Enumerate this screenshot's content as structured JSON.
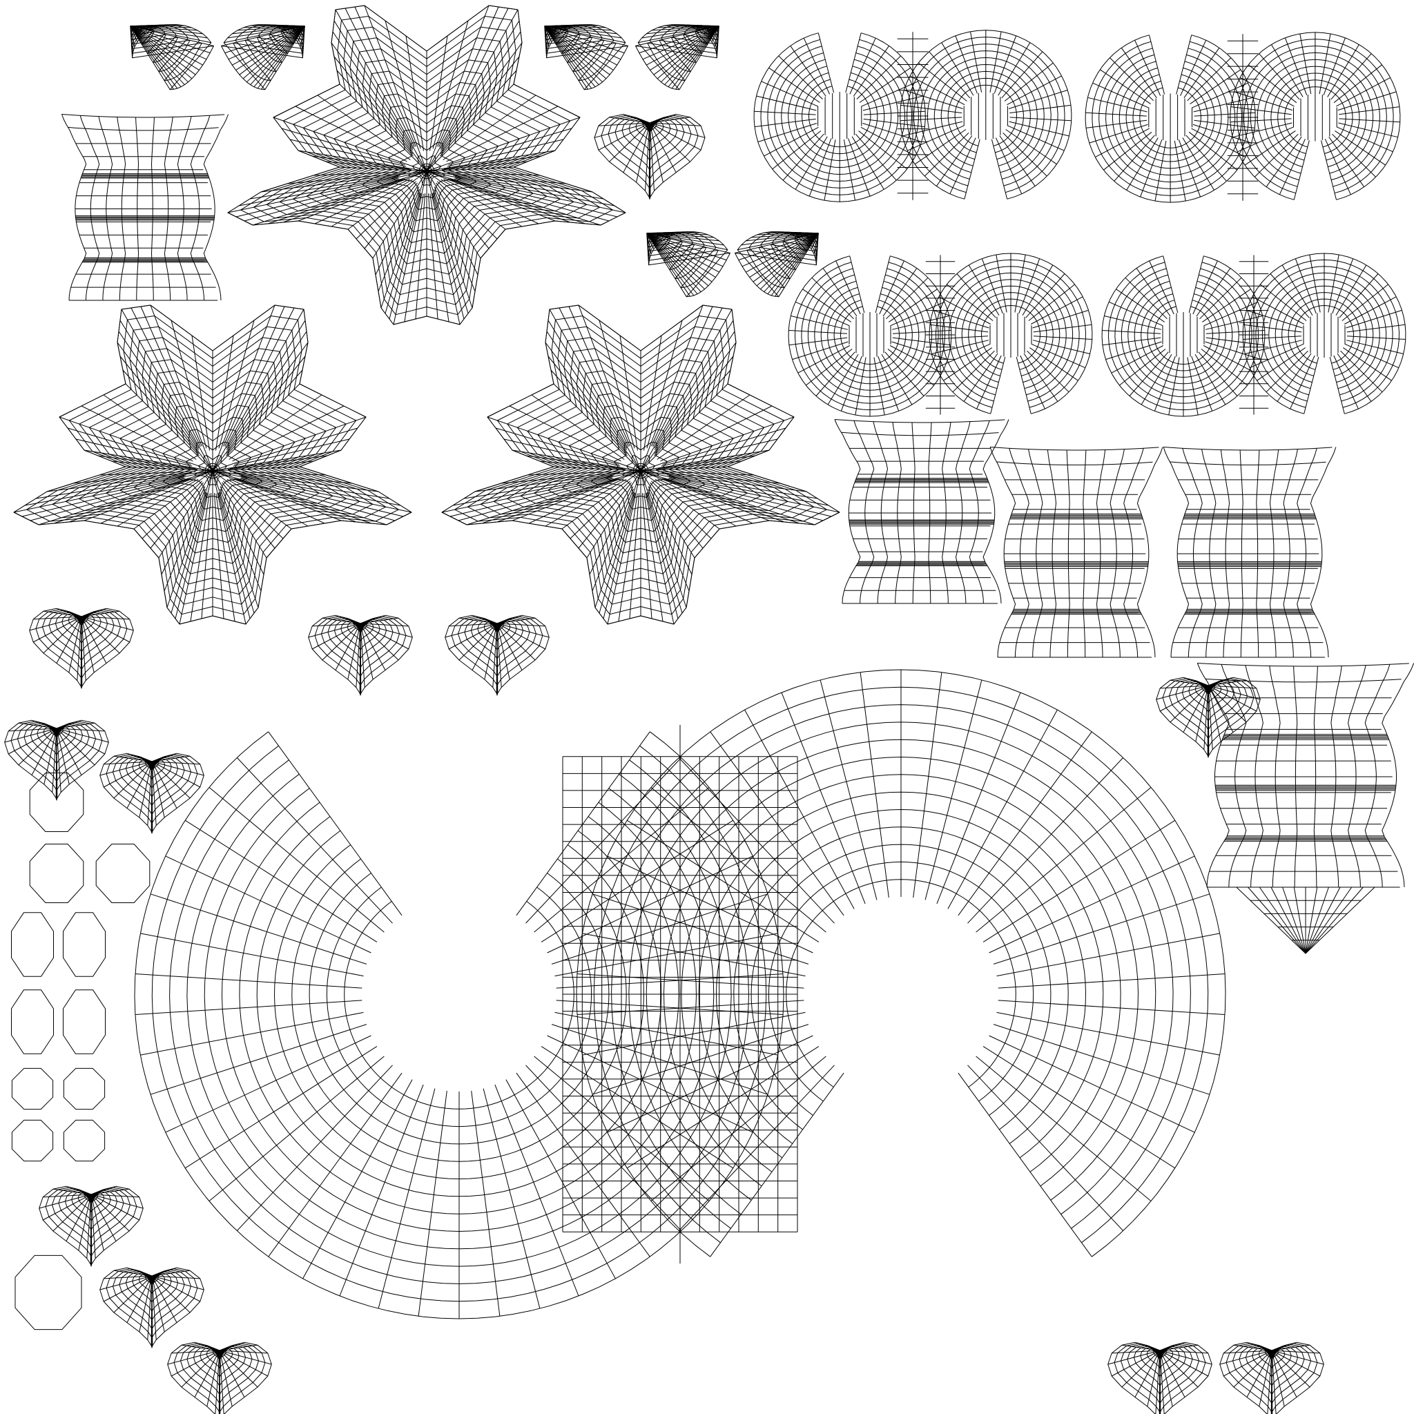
{
  "canvas": {
    "background_color": "#ffffff",
    "line_color": "#000000"
  },
  "islands": [
    {
      "kind": "twin-lobe",
      "label": ""
    },
    {
      "kind": "twin-lobe",
      "label": ""
    },
    {
      "kind": "twin-lobe",
      "label": ""
    },
    {
      "kind": "twin-lobe",
      "label": ""
    },
    {
      "kind": "twin-lobe-large",
      "label": ""
    },
    {
      "kind": "star",
      "label": ""
    },
    {
      "kind": "star",
      "label": ""
    },
    {
      "kind": "star",
      "label": ""
    },
    {
      "kind": "waist",
      "label": ""
    },
    {
      "kind": "waist",
      "label": ""
    },
    {
      "kind": "waist",
      "label": ""
    },
    {
      "kind": "waist",
      "label": ""
    },
    {
      "kind": "waist-tail",
      "label": ""
    },
    {
      "kind": "heart",
      "label": ""
    },
    {
      "kind": "petal",
      "label": ""
    },
    {
      "kind": "octagon",
      "label": ""
    }
  ]
}
